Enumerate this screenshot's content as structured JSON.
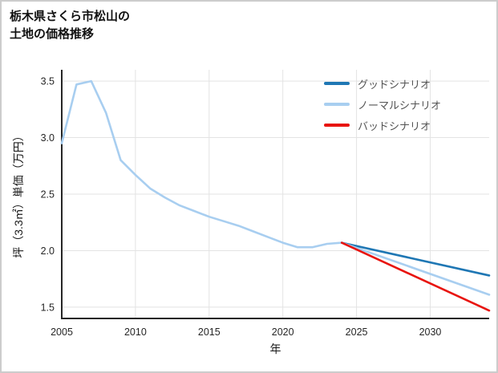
{
  "page": {
    "background": "#ffffff",
    "border_color": "#cccccc"
  },
  "header": {
    "title_line1": "栃木県さくら市松山の",
    "title_line2": "土地の価格推移"
  },
  "chart_data": {
    "type": "line",
    "title": "栃木県さくら市松山の土地の価格推移",
    "xlabel": "年",
    "ylabel": "坪（3.3㎡）単価（万円）",
    "xlim": [
      2005,
      2034
    ],
    "ylim": [
      1.4,
      3.6
    ],
    "xticks": [
      2005,
      2010,
      2015,
      2020,
      2025,
      2030
    ],
    "yticks": [
      1.5,
      2.0,
      2.5,
      3.0,
      3.5
    ],
    "grid": true,
    "grid_color": "#e3e3e3",
    "axis_color": "#262626",
    "tick_color": "#262626",
    "legend_position": "upper right",
    "legend_text_color": "#545454",
    "series": [
      {
        "id": "price-history",
        "name": "",
        "color": "#a8cef0",
        "x": [
          2005,
          2006,
          2007,
          2008,
          2009,
          2010,
          2011,
          2012,
          2013,
          2014,
          2015,
          2016,
          2017,
          2018,
          2019,
          2020,
          2021,
          2022,
          2023,
          2024
        ],
        "y": [
          2.95,
          3.47,
          3.5,
          3.22,
          2.8,
          2.67,
          2.55,
          2.47,
          2.4,
          2.35,
          2.3,
          2.26,
          2.22,
          2.17,
          2.12,
          2.07,
          2.03,
          2.03,
          2.06,
          2.07
        ]
      },
      {
        "id": "good-scenario",
        "name": "グッドシナリオ",
        "color": "#1f77b4",
        "x": [
          2024,
          2034
        ],
        "y": [
          2.07,
          1.78
        ]
      },
      {
        "id": "normal-scenario",
        "name": "ノーマルシナリオ",
        "color": "#a8cef0",
        "x": [
          2024,
          2034
        ],
        "y": [
          2.07,
          1.61
        ]
      },
      {
        "id": "bad-scenario",
        "name": "バッドシナリオ",
        "color": "#e8140f",
        "x": [
          2024,
          2034
        ],
        "y": [
          2.07,
          1.47
        ]
      }
    ]
  }
}
